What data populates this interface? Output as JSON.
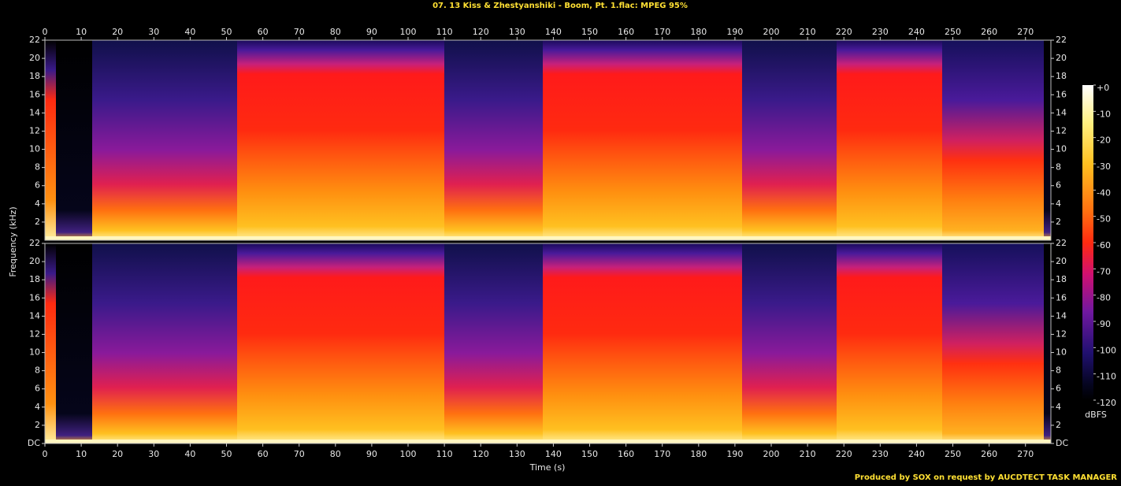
{
  "chart_data": {
    "type": "spectrogram",
    "title": "07. 13 Kiss & Zhestyanshiki - Boom, Pt. 1.flac: MPEG 95%",
    "x_label": "Time (s)",
    "y_label": "Frequency (kHz)",
    "xlim": [
      0,
      277
    ],
    "xticks": [
      0,
      10,
      20,
      30,
      40,
      50,
      60,
      70,
      80,
      90,
      100,
      110,
      120,
      130,
      140,
      150,
      160,
      170,
      180,
      190,
      200,
      210,
      220,
      230,
      240,
      250,
      260,
      270
    ],
    "ylim": [
      0,
      22
    ],
    "panels": [
      {
        "yticks": [
          2,
          4,
          6,
          8,
          10,
          12,
          14,
          16,
          18,
          20,
          22
        ]
      },
      {
        "yticks": [
          {
            "value": 0,
            "label": "DC"
          },
          2,
          4,
          6,
          8,
          10,
          12,
          14,
          16,
          18,
          20,
          22
        ]
      }
    ],
    "colorbar": {
      "label": "dBFS",
      "lim": [
        -120,
        0
      ],
      "ticks": [
        {
          "value": 0,
          "label": "+0"
        },
        -10,
        -20,
        -30,
        -40,
        -50,
        -60,
        -70,
        -80,
        -90,
        -100,
        -110,
        -120
      ]
    },
    "credit": "Produced by SOX on request by AUCDTECT TASK MANAGER"
  }
}
